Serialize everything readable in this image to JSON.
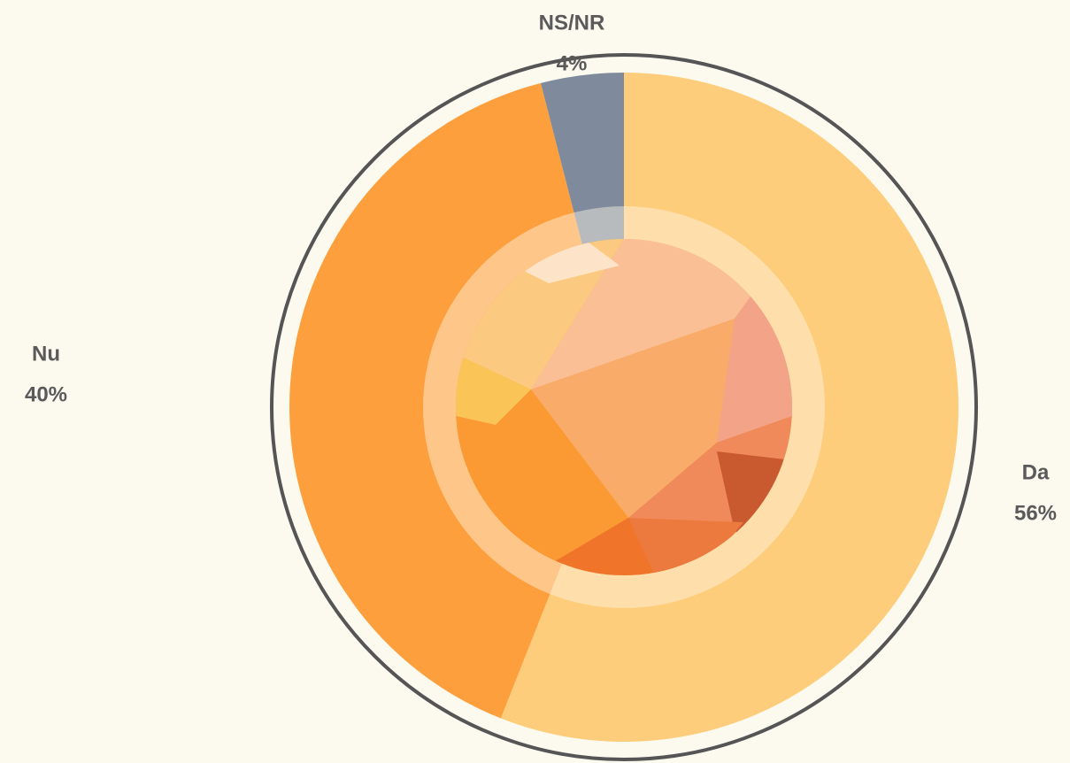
{
  "chart_data": {
    "type": "donut",
    "categories": [
      "Da",
      "Nu",
      "NS/NR"
    ],
    "values": [
      56,
      40,
      4
    ],
    "value_labels": [
      "56%",
      "40%",
      "4%"
    ],
    "colors": [
      "#fdcd7c",
      "#fd9f3d",
      "#7f8a9c"
    ]
  }
}
